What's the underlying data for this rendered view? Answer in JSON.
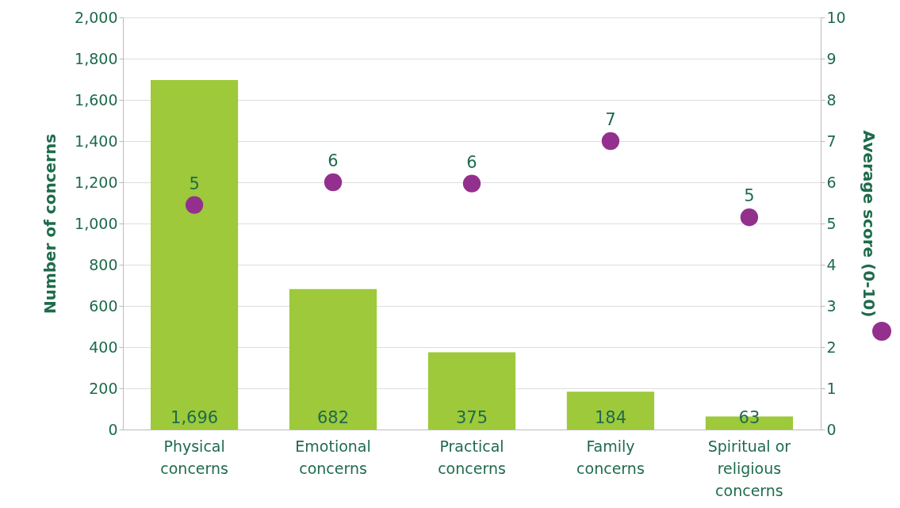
{
  "chart_data": {
    "type": "bar",
    "categories": [
      "Physical\nconcerns",
      "Emotional\nconcerns",
      "Practical\nconcerns",
      "Family\nconcerns",
      "Spiritual or\nreligious\nconcerns"
    ],
    "ylabel": "Number of concerns",
    "y2label": "Average score (0-10)",
    "ylim": [
      0,
      2000
    ],
    "yticks": [
      0,
      200,
      400,
      600,
      800,
      {
        "value": 1000,
        "label": "1,000"
      },
      {
        "value": 1200,
        "label": "1,200"
      },
      {
        "value": 1400,
        "label": "1,400"
      },
      {
        "value": 1600,
        "label": "1,600"
      },
      {
        "value": 1800,
        "label": "1,800"
      },
      {
        "value": 2000,
        "label": "2,000"
      }
    ],
    "y2lim": [
      0,
      10
    ],
    "y2ticks": [
      0,
      1,
      2,
      3,
      4,
      5,
      6,
      7,
      8,
      9,
      10
    ],
    "grid": "y",
    "series": [
      {
        "color": "#9dc93b",
        "values": [
          1696,
          682,
          375,
          184,
          63
        ],
        "value_labels": [
          "1,696",
          "682",
          "375",
          "184",
          "63"
        ]
      },
      {
        "type": "scatter",
        "axis": "y2",
        "marker": "circle",
        "color": "#93308d",
        "values": [
          5.45,
          6.0,
          5.97,
          7.0,
          5.15
        ],
        "value_labels": [
          "5",
          "6",
          "6",
          "7",
          "5"
        ]
      }
    ]
  }
}
